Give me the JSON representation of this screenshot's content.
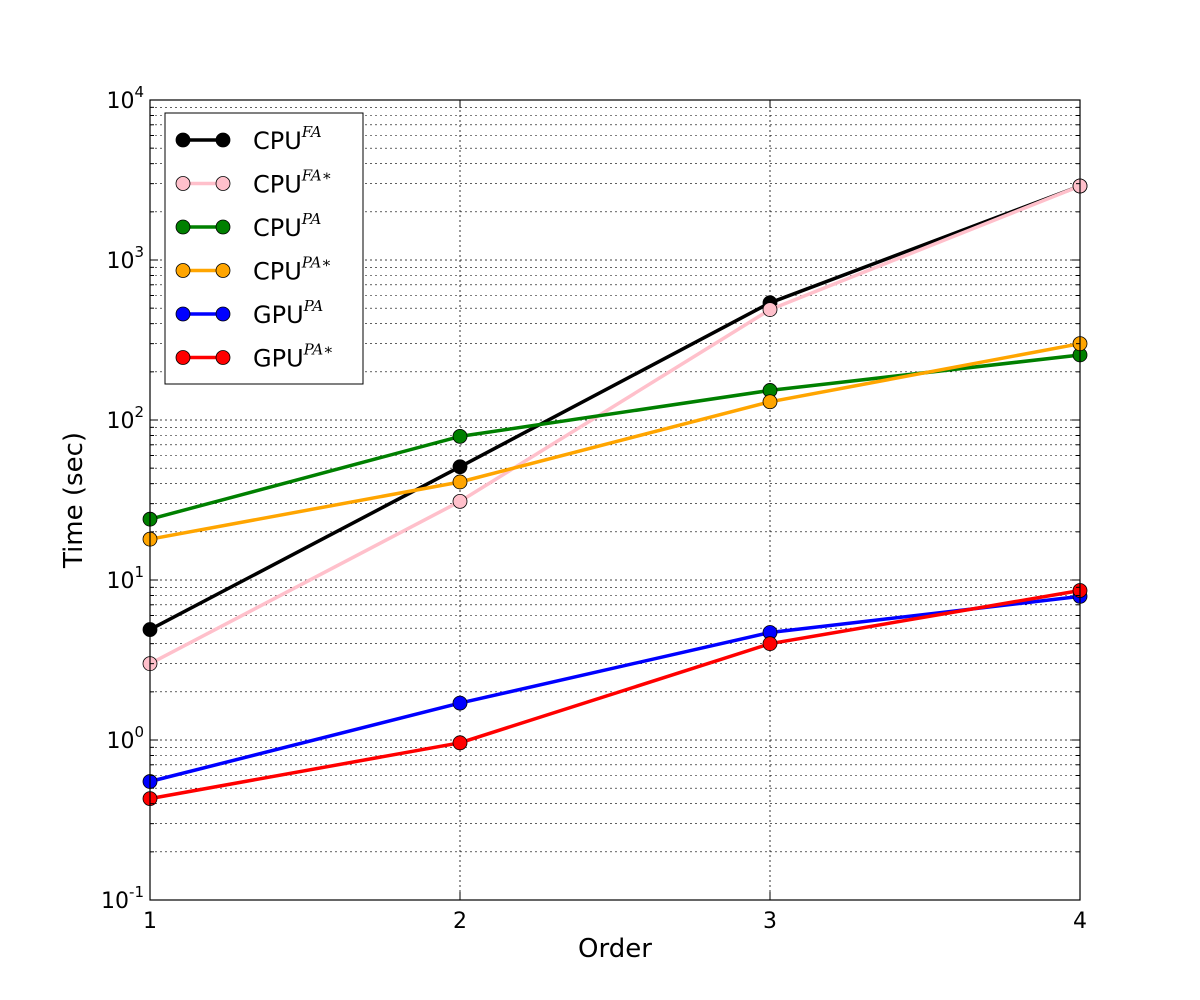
{
  "chart_data": {
    "type": "line",
    "title": "",
    "xlabel": "Order",
    "ylabel": "Time (sec)",
    "xlim": [
      1,
      4
    ],
    "ylim": [
      0.1,
      10000
    ],
    "yscale": "log",
    "grid": true,
    "legend": "top-left",
    "x": [
      1,
      2,
      3,
      4
    ],
    "x_tick_labels": [
      "1",
      "2",
      "3",
      "4"
    ],
    "y_tick_labels": [
      {
        "base": "10",
        "exp": "-1"
      },
      {
        "base": "10",
        "exp": "0"
      },
      {
        "base": "10",
        "exp": "1"
      },
      {
        "base": "10",
        "exp": "2"
      },
      {
        "base": "10",
        "exp": "3"
      },
      {
        "base": "10",
        "exp": "4"
      }
    ],
    "series": [
      {
        "name": "CPU",
        "sup": "FA",
        "color": "#000000",
        "marker_fill": "#000000",
        "values": [
          4.9,
          51,
          540,
          2900
        ]
      },
      {
        "name": "CPU",
        "sup": "FA∗",
        "color": "#ffc0cb",
        "marker_fill": "#ffc0cb",
        "values": [
          3.0,
          31,
          490,
          2900
        ]
      },
      {
        "name": "CPU",
        "sup": "PA",
        "color": "#008000",
        "marker_fill": "#008000",
        "values": [
          24,
          79,
          153,
          255
        ]
      },
      {
        "name": "CPU",
        "sup": "PA∗",
        "color": "#ffa500",
        "marker_fill": "#ffa500",
        "values": [
          18,
          41,
          130,
          300
        ]
      },
      {
        "name": "GPU",
        "sup": "PA",
        "color": "#0000ff",
        "marker_fill": "#0000ff",
        "values": [
          0.55,
          1.7,
          4.7,
          7.9
        ]
      },
      {
        "name": "GPU",
        "sup": "PA∗",
        "color": "#ff0000",
        "marker_fill": "#ff0000",
        "values": [
          0.43,
          0.96,
          4.0,
          8.6
        ]
      }
    ]
  }
}
